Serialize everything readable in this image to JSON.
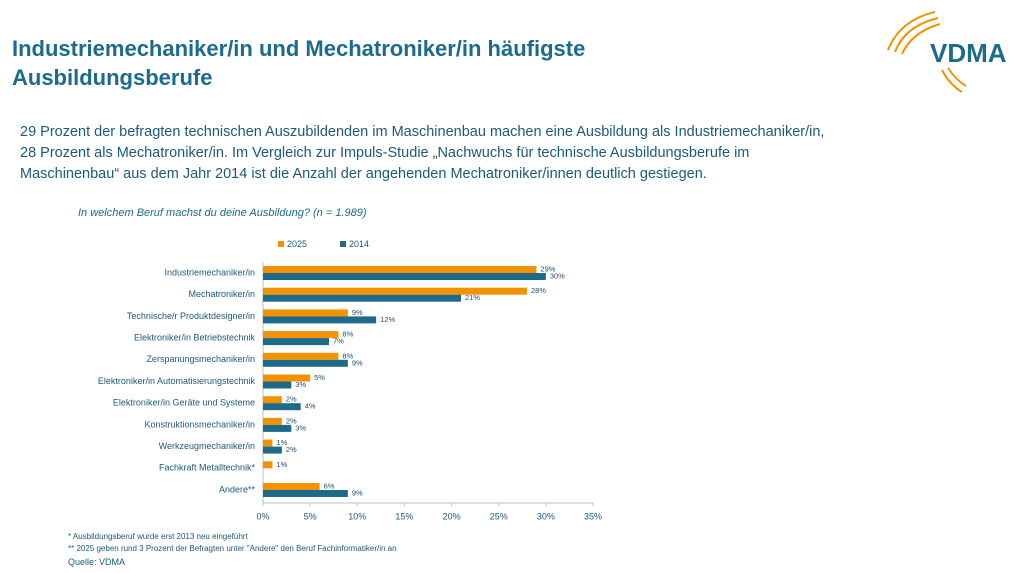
{
  "logo": "VDMA",
  "title": [
    "Industriemechaniker/in und Mechatroniker/in häufigste",
    "Ausbildungsberufe"
  ],
  "intro": [
    "29 Prozent der befragten technischen Auszubildenden im Maschinenbau machen eine Ausbildung als Industriemechaniker/in,",
    "28 Prozent als Mechatroniker/in. Im Vergleich zur Impuls-Studie „Nachwuchs für technische Ausbildungsberufe im",
    "Maschinenbau“ aus dem Jahr 2014 ist die Anzahl der angehenden Mechatroniker/innen deutlich gestiegen."
  ],
  "chart_data": {
    "type": "hbar",
    "title": "In welchem Beruf machst du deine Ausbildung? (n = 1.989)",
    "categories": [
      "Industriemechaniker/in",
      "Mechatroniker/in",
      "Technische/r Produktdesigner/in",
      "Elektroniker/in Betriebstechnik",
      "Zerspanungsmechaniker/in",
      "Elektroniker/in Automatisierungstechnik",
      "Elektroniker/in Geräte und Systeme",
      "Konstruktionsmechaniker/in",
      "Werkzeugmechaniker/in",
      "Fachkraft Metalltechnik*",
      "Andere**"
    ],
    "series": [
      {
        "name": "2025",
        "color": "#f39200",
        "values": [
          29,
          28,
          9,
          8,
          8,
          5,
          2,
          2,
          1,
          1,
          6
        ],
        "value_labels": [
          "29%",
          "28%",
          "9%",
          "8%",
          "8%",
          "5%",
          "2%",
          "2%",
          "1%",
          "1%",
          "6%"
        ]
      },
      {
        "name": "2014",
        "color": "#1d6b88",
        "values": [
          30,
          21,
          12,
          7,
          9,
          3,
          4,
          3,
          2,
          null,
          9
        ],
        "value_labels": [
          "30%",
          "21%",
          "12%",
          "7%",
          "9%",
          "3%",
          "4%",
          "3%",
          "2%",
          null,
          "9%"
        ]
      }
    ],
    "xlim": [
      0,
      35
    ],
    "xticks": [
      {
        "value": 0,
        "label": "0%"
      },
      {
        "value": 5,
        "label": "5%"
      },
      {
        "value": 10,
        "label": "10%"
      },
      {
        "value": 15,
        "label": "15%"
      },
      {
        "value": 20,
        "label": "20%"
      },
      {
        "value": 25,
        "label": "25%"
      },
      {
        "value": 30,
        "label": "30%"
      },
      {
        "value": 35,
        "label": "35%"
      }
    ]
  },
  "footnotes": [
    "* Ausbildungsberuf wurde erst 2013 neu eingeführt",
    "** 2025 geben rund 3 Prozent der Befragten unter \"Andere\" den Beruf Fachinformatiker/in an"
  ],
  "source": "Quelle: VDMA"
}
